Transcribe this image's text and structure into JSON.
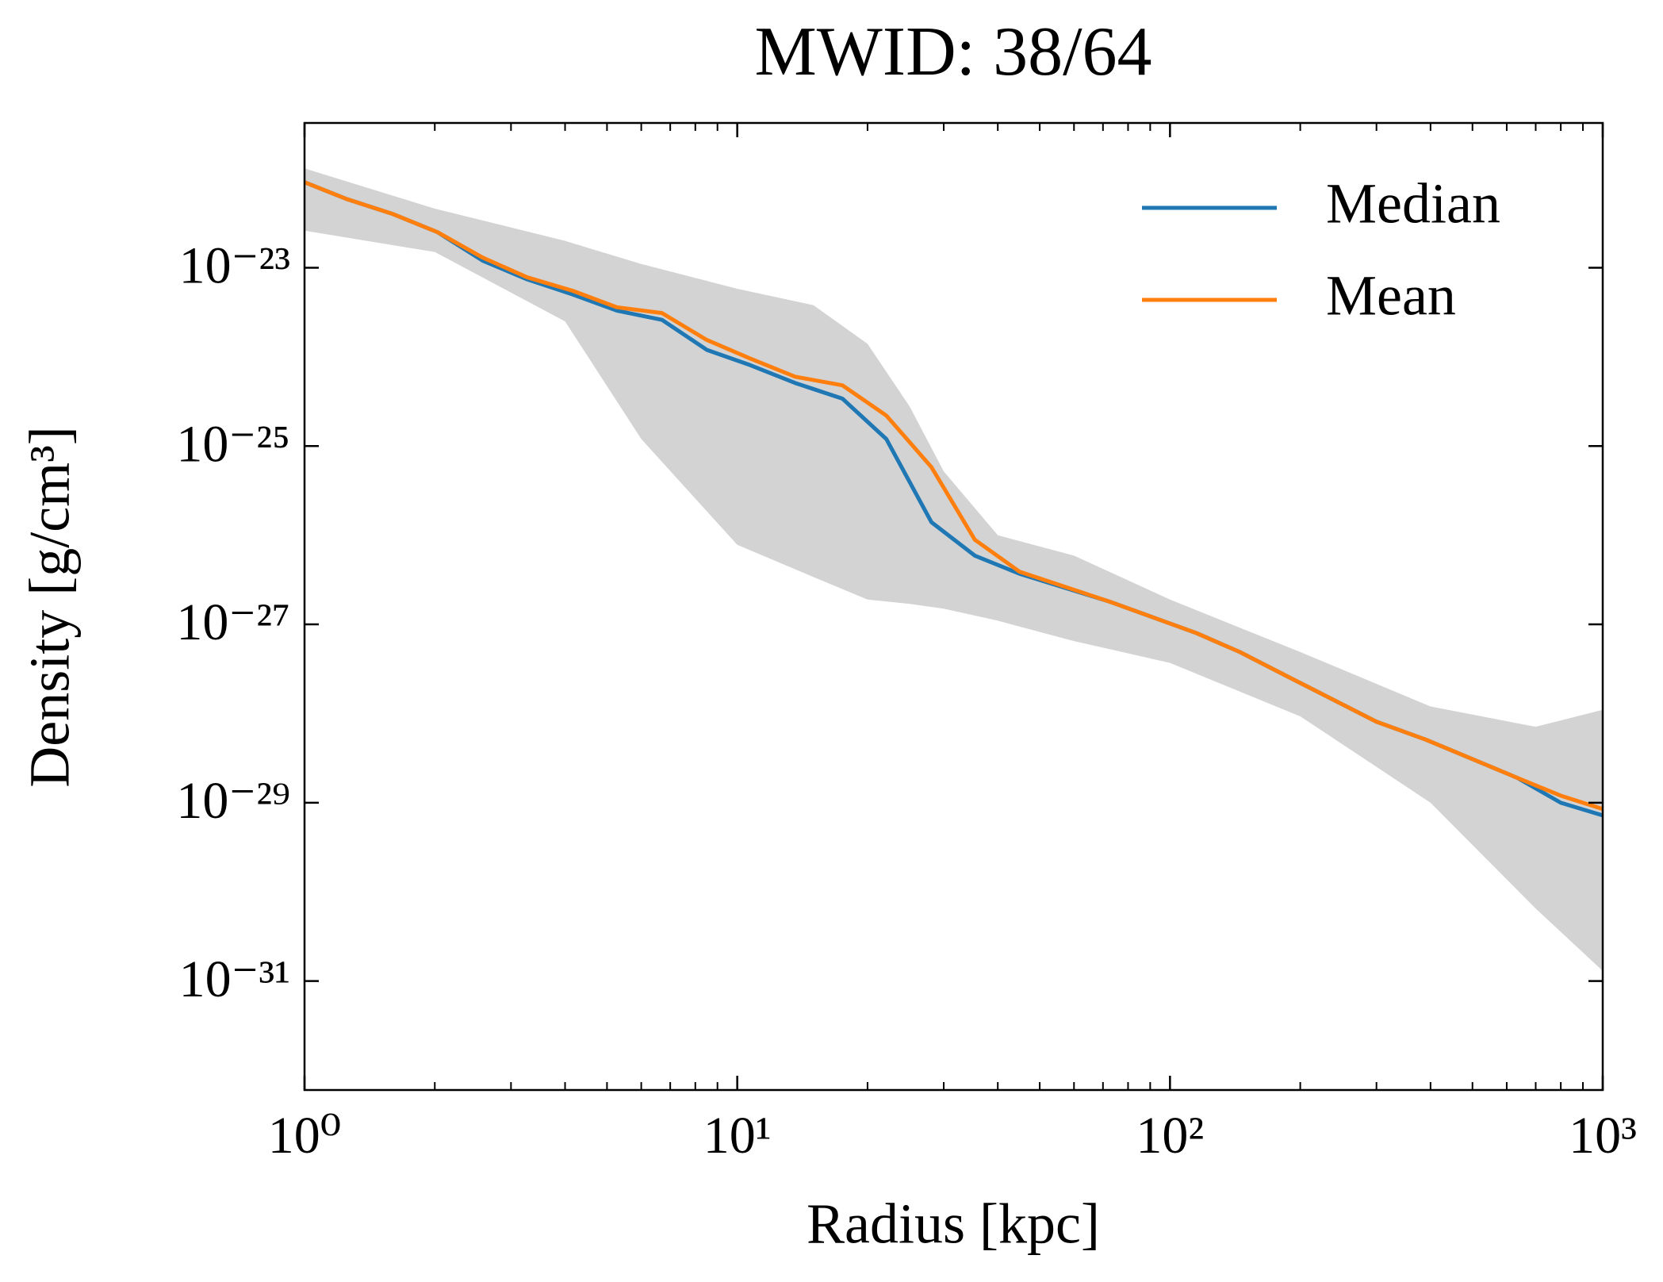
{
  "chart_data": {
    "type": "line",
    "title": "MWID: 38/64",
    "x_label": "Radius [kpc]",
    "y_label": "Density [g/cm³]",
    "x_log": true,
    "y_log": true,
    "xlim": [
      1,
      1000
    ],
    "ylim": [
      6e-33,
      4.2e-22
    ],
    "xticks": [
      {
        "value": 1,
        "label": "10⁰"
      },
      {
        "value": 10,
        "label": "10¹"
      },
      {
        "value": 100,
        "label": "10²"
      },
      {
        "value": 1000,
        "label": "10³"
      }
    ],
    "yticks": [
      {
        "value": 1e-31,
        "label": "10⁻³¹"
      },
      {
        "value": 1e-29,
        "label": "10⁻²⁹"
      },
      {
        "value": 1e-27,
        "label": "10⁻²⁷"
      },
      {
        "value": 1e-25,
        "label": "10⁻²⁵"
      },
      {
        "value": 1e-23,
        "label": "10⁻²³"
      }
    ],
    "legend": "upper right",
    "x": [
      1,
      1.25,
      1.6,
      2.03,
      2.58,
      3.27,
      4.17,
      5.27,
      6.7,
      8.5,
      10.7,
      13.6,
      17.5,
      22.1,
      28.1,
      35.4,
      44.9,
      72.5,
      115,
      145,
      190,
      300,
      390,
      635,
      800,
      1000
    ],
    "series": [
      {
        "name": "Median",
        "color": "#1f77b4",
        "values": [
          9.1e-23,
          5.9e-23,
          4e-23,
          2.5e-23,
          1.2e-23,
          7.4e-24,
          5e-24,
          3.3e-24,
          2.6e-24,
          1.2e-24,
          8.1e-25,
          5.1e-25,
          3.4e-25,
          1.2e-25,
          1.4e-26,
          5.9e-27,
          3.7e-27,
          1.8e-27,
          8e-28,
          4.9e-28,
          2.5e-28,
          8.1e-29,
          5.1e-29,
          1.9e-29,
          1e-29,
          7.2e-30
        ]
      },
      {
        "name": "Mean",
        "color": "#ff7f0e",
        "values": [
          9.1e-23,
          5.9e-23,
          4e-23,
          2.5e-23,
          1.3e-23,
          7.8e-24,
          5.5e-24,
          3.6e-24,
          3.1e-24,
          1.55e-24,
          9.6e-25,
          6e-25,
          4.8e-25,
          2.2e-25,
          5.8e-26,
          8.9e-27,
          3.9e-27,
          1.8e-27,
          8e-28,
          4.9e-28,
          2.5e-28,
          8.1e-29,
          5.1e-29,
          1.9e-29,
          1.2e-29,
          8.5e-30
        ]
      }
    ],
    "band": {
      "color": "#d3d3d3",
      "x": [
        1,
        2,
        4,
        6,
        10,
        15,
        20,
        25,
        30,
        40,
        60,
        100,
        200,
        400,
        700,
        1000
      ],
      "upper": [
        1.3e-22,
        4.6e-23,
        2e-23,
        1.1e-23,
        5.8e-24,
        3.8e-24,
        1.4e-24,
        2.8e-25,
        5.2e-26,
        1e-26,
        5.9e-27,
        1.9e-27,
        4.9e-28,
        1.2e-28,
        7.1e-29,
        1.1e-28
      ],
      "lower": [
        2.6e-23,
        1.5e-23,
        2.5e-24,
        1.2e-25,
        7.8e-27,
        3.4e-27,
        1.9e-27,
        1.7e-27,
        1.5e-27,
        1.1e-27,
        6.5e-28,
        3.7e-28,
        9.3e-29,
        1e-29,
        6.5e-31,
        1.3e-31
      ]
    }
  }
}
